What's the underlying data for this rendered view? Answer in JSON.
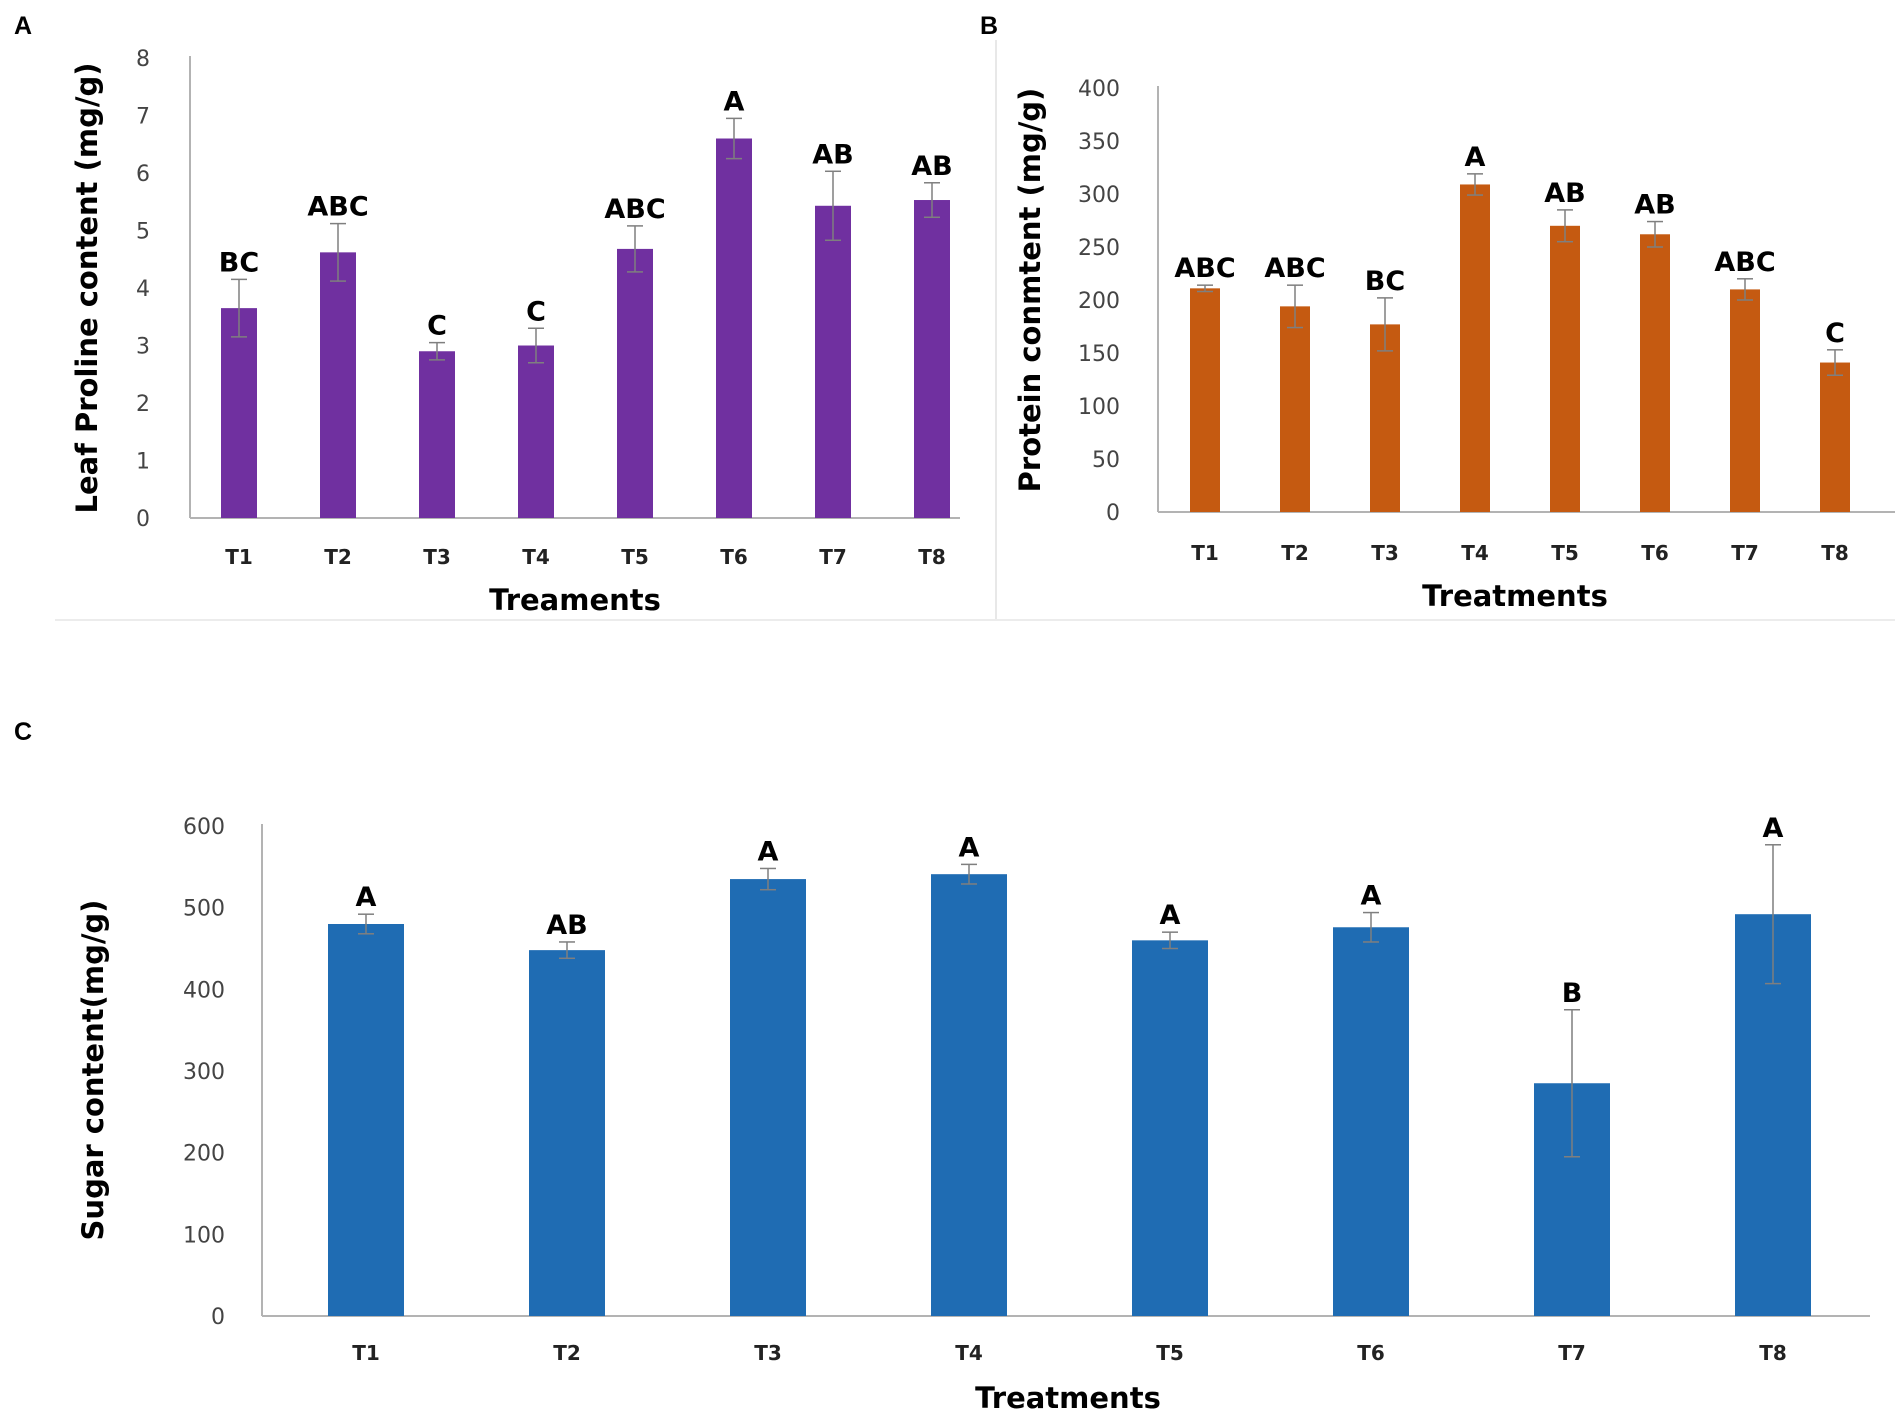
{
  "colors": {
    "purple": "#7030a0",
    "orange": "#c55a11",
    "blue": "#1f6cb3",
    "error": "#7f7f7f",
    "axis": "#b3b3b3"
  },
  "chart_data": [
    {
      "panel": "A",
      "type": "bar",
      "categories": [
        "T1",
        "T2",
        "T3",
        "T4",
        "T5",
        "T6",
        "T7",
        "T8"
      ],
      "series": [
        {
          "name": "Leaf Proline content",
          "values": [
            3.65,
            4.62,
            2.9,
            3.0,
            4.68,
            6.6,
            5.43,
            5.53
          ],
          "errors": [
            0.5,
            0.5,
            0.15,
            0.3,
            0.4,
            0.35,
            0.6,
            0.3
          ]
        }
      ],
      "significance": [
        "BC",
        "ABC",
        "C",
        "C",
        "ABC",
        "A",
        "AB",
        "AB"
      ],
      "xlabel": "Treaments",
      "ylabel": "Leaf  Proline content (mg/g)",
      "ylim": [
        0,
        8
      ],
      "yticks": [
        0,
        1,
        2,
        3,
        4,
        5,
        6,
        7,
        8
      ],
      "color": "#7030a0"
    },
    {
      "panel": "B",
      "type": "bar",
      "categories": [
        "T1",
        "T2",
        "T3",
        "T4",
        "T5",
        "T6",
        "T7",
        "T8"
      ],
      "series": [
        {
          "name": "Protein content",
          "values": [
            211,
            194,
            177,
            309,
            270,
            262,
            210,
            141
          ],
          "errors": [
            3,
            20,
            25,
            10,
            15,
            12,
            10,
            12
          ]
        }
      ],
      "significance": [
        "ABC",
        "ABC",
        "BC",
        "A",
        "AB",
        "AB",
        "ABC",
        "C"
      ],
      "xlabel": "Treatments",
      "ylabel": "Protein conmtent  (mg/g)",
      "ylim": [
        0,
        400
      ],
      "yticks": [
        0,
        50,
        100,
        150,
        200,
        250,
        300,
        350,
        400
      ],
      "color": "#c55a11"
    },
    {
      "panel": "C",
      "type": "bar",
      "categories": [
        "T1",
        "T2",
        "T3",
        "T4",
        "T5",
        "T6",
        "T7",
        "T8"
      ],
      "series": [
        {
          "name": "Sugar content",
          "values": [
            480,
            448,
            535,
            541,
            460,
            476,
            285,
            492
          ],
          "errors": [
            12,
            10,
            13,
            12,
            10,
            18,
            90,
            85
          ]
        }
      ],
      "significance": [
        "A",
        "AB",
        "A",
        "A",
        "A",
        "A",
        "B",
        "A"
      ],
      "xlabel": "Treatments",
      "ylabel": "Sugar content(mg/g)",
      "ylim": [
        0,
        600
      ],
      "yticks": [
        0,
        100,
        200,
        300,
        400,
        500,
        600
      ],
      "color": "#1f6cb3"
    }
  ]
}
